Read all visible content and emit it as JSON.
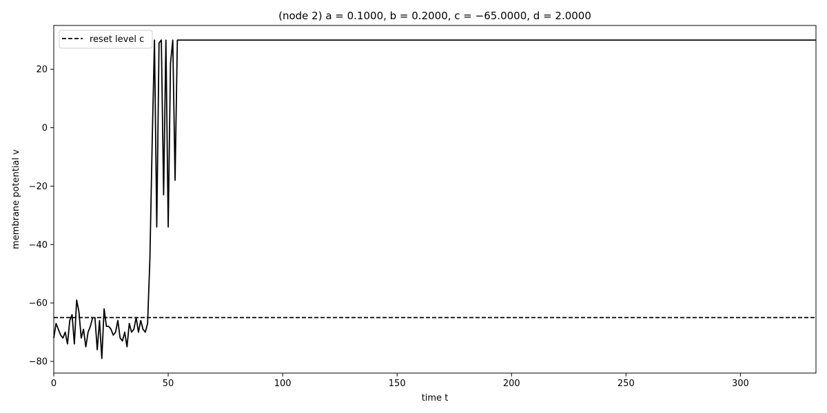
{
  "chart_data": {
    "type": "line",
    "title": "(node 2) a = 0.1000, b = 0.2000, c = −65.0000, d = 2.0000",
    "xlabel": "time t",
    "ylabel": "membrane potential v",
    "xlim": [
      0,
      333
    ],
    "ylim": [
      -84,
      35
    ],
    "xticks": [
      0,
      50,
      100,
      150,
      200,
      250,
      300
    ],
    "yticks": [
      -80,
      -60,
      -40,
      -20,
      0,
      20
    ],
    "grid": false,
    "legend": {
      "placement": "top-left",
      "entries": [
        "reset level c"
      ]
    },
    "reset_level": -65,
    "series": [
      {
        "name": "",
        "color": "#000000",
        "style": "solid",
        "x": [
          0,
          1,
          2,
          3,
          4,
          5,
          6,
          7,
          8,
          9,
          10,
          11,
          12,
          13,
          14,
          15,
          16,
          17,
          18,
          19,
          20,
          21,
          22,
          23,
          24,
          25,
          26,
          27,
          28,
          29,
          30,
          31,
          32,
          33,
          34,
          35,
          36,
          37,
          38,
          39,
          40,
          41,
          42,
          43,
          44,
          45,
          46,
          47,
          48,
          49,
          50,
          51,
          52,
          53,
          54,
          55,
          333
        ],
        "y": [
          -72,
          -67,
          -69,
          -71,
          -72,
          -70,
          -74,
          -66,
          -64,
          -74,
          -59,
          -63,
          -72,
          -69,
          -75,
          -70,
          -68,
          -65,
          -65,
          -76,
          -66,
          -79,
          -62,
          -68,
          -68,
          -69,
          -71,
          -70,
          -66,
          -72,
          -73,
          -70,
          -75,
          -67,
          -70,
          -69,
          -65,
          -70,
          -66,
          -69,
          -70,
          -67,
          -45,
          -5,
          30,
          -34,
          29,
          30,
          -23,
          30,
          -34,
          22,
          30,
          -18,
          30,
          30,
          30
        ]
      },
      {
        "name": "reset level c",
        "color": "#000000",
        "style": "dashed",
        "x": [
          0,
          333
        ],
        "y": [
          -65,
          -65
        ]
      }
    ]
  }
}
